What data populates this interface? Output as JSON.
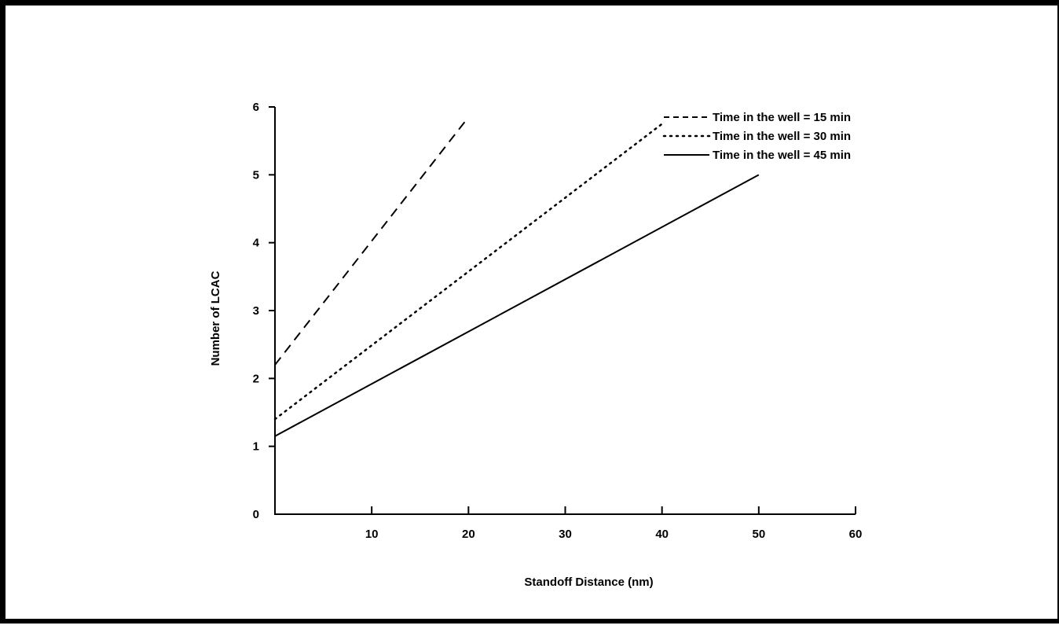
{
  "chart_data": {
    "type": "line",
    "title": "",
    "xlabel": "Standoff Distance (nm)",
    "ylabel": "Number of LCAC",
    "xlim": [
      0,
      60
    ],
    "ylim": [
      0,
      6
    ],
    "x_ticks": [
      10,
      20,
      30,
      40,
      50,
      60
    ],
    "y_ticks": [
      0,
      1,
      2,
      3,
      4,
      5,
      6
    ],
    "grid": false,
    "legend_position": "top-right",
    "series": [
      {
        "name": "Time in the well = 15 min",
        "line_style": "dashed",
        "color": "#000000",
        "x": [
          0,
          20
        ],
        "y": [
          2.2,
          5.85
        ]
      },
      {
        "name": "Time in the well = 30 min",
        "line_style": "dotted",
        "color": "#000000",
        "x": [
          0,
          40
        ],
        "y": [
          1.4,
          5.75
        ]
      },
      {
        "name": "Time in the well = 45 min",
        "line_style": "solid",
        "color": "#000000",
        "x": [
          0,
          50
        ],
        "y": [
          1.15,
          5.0
        ]
      }
    ]
  }
}
